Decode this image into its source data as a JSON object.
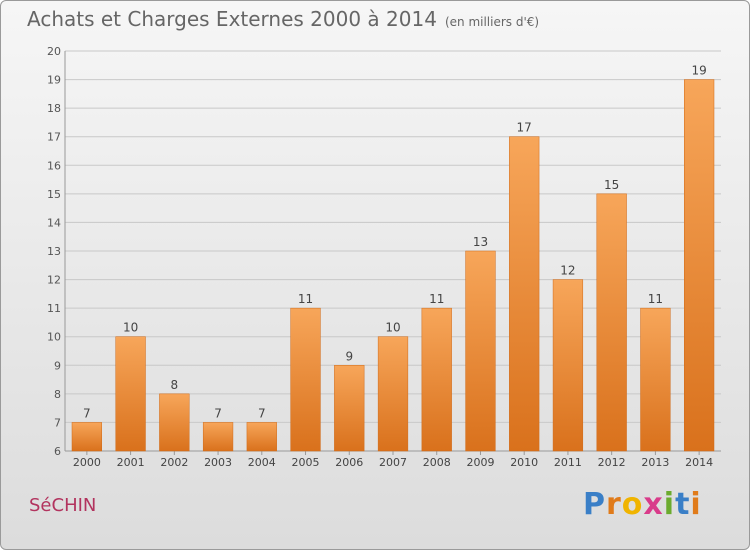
{
  "header": {
    "title": "Achats et Charges Externes 2000 à 2014",
    "unit": "(en milliers d'€)"
  },
  "footer": {
    "commune": "SéCHIN",
    "brand_letters": [
      "P",
      "r",
      "o",
      "x",
      "i",
      "t",
      "i"
    ],
    "brand_colors": [
      "#3a7fc7",
      "#e07b1a",
      "#f0b400",
      "#d93b8a",
      "#6bab2e",
      "#3a7fc7",
      "#e07b1a"
    ]
  },
  "chart_data": {
    "type": "bar",
    "categories": [
      "2000",
      "2001",
      "2002",
      "2003",
      "2004",
      "2005",
      "2006",
      "2007",
      "2008",
      "2009",
      "2010",
      "2011",
      "2012",
      "2013",
      "2014"
    ],
    "values": [
      7,
      10,
      8,
      7,
      7,
      11,
      9,
      10,
      11,
      13,
      17,
      12,
      15,
      11,
      19
    ],
    "yticks": [
      6,
      7,
      8,
      9,
      10,
      11,
      12,
      13,
      14,
      15,
      16,
      17,
      18,
      19,
      20
    ],
    "ylim": [
      6,
      20
    ],
    "grid": true,
    "bar_color_top": "#f7a65a",
    "bar_color_bottom": "#d9711c"
  }
}
